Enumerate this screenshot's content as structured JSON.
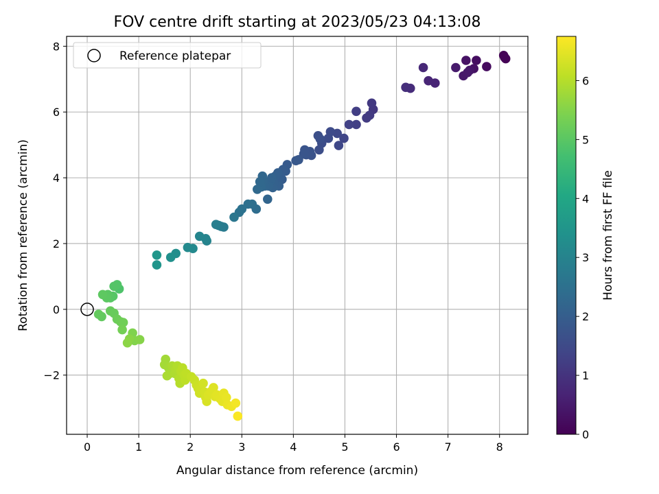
{
  "chart_data": {
    "type": "scatter",
    "title": "FOV centre drift starting at 2023/05/23 04:13:08",
    "xlabel": "Angular distance from reference (arcmin)",
    "ylabel": "Rotation from reference (arcmin)",
    "xlim": [
      -0.4,
      8.55
    ],
    "ylim": [
      -3.8,
      8.3
    ],
    "xticks": [
      0,
      1,
      2,
      3,
      4,
      5,
      6,
      7,
      8
    ],
    "yticks": [
      -2,
      0,
      2,
      4,
      6,
      8
    ],
    "ytick_labels": [
      "−2",
      "0",
      "2",
      "4",
      "6",
      "8"
    ],
    "grid": true,
    "legend": {
      "placement": "top-left",
      "entries": [
        "Reference platepar"
      ]
    },
    "reference_point": {
      "x": 0,
      "y": 0
    },
    "colorbar": {
      "label": "Hours from first FF file",
      "colormap": "viridis",
      "range": [
        0,
        6.75
      ],
      "ticks": [
        0,
        1,
        2,
        3,
        4,
        5,
        6
      ]
    },
    "points": [
      [
        8.08,
        7.72,
        0.0
      ],
      [
        8.12,
        7.62,
        0.02
      ],
      [
        8.1,
        7.66,
        0.04
      ],
      [
        7.75,
        7.38,
        0.2
      ],
      [
        7.55,
        7.57,
        0.25
      ],
      [
        7.5,
        7.32,
        0.3
      ],
      [
        7.35,
        7.57,
        0.33
      ],
      [
        7.42,
        7.27,
        0.38
      ],
      [
        7.3,
        7.1,
        0.42
      ],
      [
        7.38,
        7.2,
        0.45
      ],
      [
        7.15,
        7.35,
        0.5
      ],
      [
        6.75,
        6.88,
        0.7
      ],
      [
        6.62,
        6.95,
        0.72
      ],
      [
        6.52,
        7.35,
        0.75
      ],
      [
        6.27,
        6.72,
        0.85
      ],
      [
        6.18,
        6.75,
        0.9
      ],
      [
        5.55,
        6.08,
        1.1
      ],
      [
        5.52,
        6.27,
        1.12
      ],
      [
        5.48,
        5.9,
        1.15
      ],
      [
        5.42,
        5.82,
        1.18
      ],
      [
        5.22,
        6.02,
        1.22
      ],
      [
        5.22,
        5.62,
        1.26
      ],
      [
        5.08,
        5.62,
        1.3
      ],
      [
        4.98,
        5.2,
        1.4
      ],
      [
        4.88,
        4.98,
        1.45
      ],
      [
        4.85,
        5.35,
        1.48
      ],
      [
        4.72,
        5.4,
        1.52
      ],
      [
        4.68,
        5.2,
        1.55
      ],
      [
        4.55,
        5.05,
        1.58
      ],
      [
        4.5,
        4.85,
        1.6
      ],
      [
        4.48,
        5.28,
        1.62
      ],
      [
        4.52,
        5.18,
        1.64
      ],
      [
        4.35,
        4.68,
        1.7
      ],
      [
        4.32,
        4.8,
        1.72
      ],
      [
        4.25,
        4.7,
        1.74
      ],
      [
        4.22,
        4.85,
        1.76
      ],
      [
        4.2,
        4.72,
        1.78
      ],
      [
        4.1,
        4.55,
        1.82
      ],
      [
        4.05,
        4.52,
        1.84
      ],
      [
        3.88,
        4.4,
        1.9
      ],
      [
        3.85,
        4.2,
        1.92
      ],
      [
        3.8,
        4.25,
        1.94
      ],
      [
        3.78,
        3.95,
        1.96
      ],
      [
        3.75,
        4.05,
        1.98
      ],
      [
        3.72,
        3.95,
        2.0
      ],
      [
        3.7,
        4.15,
        2.02
      ],
      [
        3.72,
        3.75,
        2.04
      ],
      [
        3.65,
        4.05,
        2.06
      ],
      [
        3.62,
        3.85,
        2.08
      ],
      [
        3.6,
        3.7,
        2.1
      ],
      [
        3.58,
        4.0,
        2.12
      ],
      [
        3.55,
        3.9,
        2.14
      ],
      [
        3.52,
        3.75,
        2.16
      ],
      [
        3.5,
        3.35,
        2.18
      ],
      [
        3.45,
        3.75,
        2.2
      ],
      [
        3.42,
        3.92,
        2.22
      ],
      [
        3.4,
        4.05,
        2.24
      ],
      [
        3.38,
        3.72,
        2.26
      ],
      [
        3.35,
        3.88,
        2.28
      ],
      [
        3.3,
        3.65,
        2.3
      ],
      [
        3.28,
        3.05,
        2.4
      ],
      [
        3.2,
        3.2,
        2.45
      ],
      [
        3.12,
        3.2,
        2.48
      ],
      [
        3.0,
        3.05,
        2.52
      ],
      [
        2.95,
        2.95,
        2.55
      ],
      [
        2.85,
        2.8,
        2.65
      ],
      [
        2.65,
        2.5,
        2.75
      ],
      [
        2.6,
        2.52,
        2.78
      ],
      [
        2.55,
        2.55,
        2.82
      ],
      [
        2.5,
        2.58,
        2.85
      ],
      [
        2.32,
        2.08,
        3.0
      ],
      [
        2.3,
        2.15,
        3.02
      ],
      [
        2.18,
        2.22,
        3.05
      ],
      [
        2.05,
        1.85,
        3.15
      ],
      [
        1.95,
        1.88,
        3.18
      ],
      [
        1.72,
        1.7,
        3.3
      ],
      [
        1.62,
        1.58,
        3.35
      ],
      [
        1.35,
        1.35,
        3.5
      ],
      [
        1.35,
        1.65,
        3.52
      ],
      [
        0.62,
        0.62,
        4.85
      ],
      [
        0.58,
        0.75,
        4.9
      ],
      [
        0.52,
        0.7,
        4.92
      ],
      [
        0.5,
        0.4,
        4.95
      ],
      [
        0.45,
        0.35,
        4.97
      ],
      [
        0.4,
        0.45,
        5.0
      ],
      [
        0.38,
        0.35,
        5.02
      ],
      [
        0.3,
        0.45,
        5.05
      ],
      [
        0.28,
        -0.22,
        5.1
      ],
      [
        0.22,
        -0.15,
        5.12
      ],
      [
        0.45,
        -0.05,
        5.15
      ],
      [
        0.52,
        -0.12,
        5.18
      ],
      [
        0.58,
        -0.3,
        5.22
      ],
      [
        0.65,
        -0.38,
        5.25
      ],
      [
        0.7,
        -0.4,
        5.28
      ],
      [
        0.68,
        -0.62,
        5.32
      ],
      [
        0.88,
        -0.72,
        5.45
      ],
      [
        0.92,
        -0.95,
        5.48
      ],
      [
        1.02,
        -0.92,
        5.52
      ],
      [
        0.82,
        -0.9,
        5.55
      ],
      [
        0.78,
        -1.02,
        5.58
      ],
      [
        1.52,
        -1.52,
        5.8
      ],
      [
        1.5,
        -1.68,
        5.82
      ],
      [
        1.58,
        -1.78,
        5.84
      ],
      [
        1.6,
        -1.95,
        5.86
      ],
      [
        1.55,
        -2.02,
        5.88
      ],
      [
        1.65,
        -1.72,
        5.9
      ],
      [
        1.7,
        -1.95,
        5.92
      ],
      [
        1.72,
        -1.82,
        5.94
      ],
      [
        1.75,
        -1.72,
        5.96
      ],
      [
        1.78,
        -2.1,
        5.98
      ],
      [
        1.8,
        -2.25,
        6.0
      ],
      [
        1.82,
        -1.88,
        6.02
      ],
      [
        1.85,
        -1.78,
        6.04
      ],
      [
        1.88,
        -2.0,
        6.06
      ],
      [
        1.9,
        -2.15,
        6.08
      ],
      [
        1.92,
        -1.95,
        6.1
      ],
      [
        2.02,
        -2.05,
        6.14
      ],
      [
        2.08,
        -2.15,
        6.18
      ],
      [
        2.12,
        -2.3,
        6.22
      ],
      [
        2.15,
        -2.4,
        6.24
      ],
      [
        2.18,
        -2.55,
        6.26
      ],
      [
        2.2,
        -2.45,
        6.28
      ],
      [
        2.25,
        -2.25,
        6.3
      ],
      [
        2.28,
        -2.52,
        6.32
      ],
      [
        2.3,
        -2.68,
        6.34
      ],
      [
        2.32,
        -2.8,
        6.36
      ],
      [
        2.35,
        -2.6,
        6.38
      ],
      [
        2.4,
        -2.5,
        6.4
      ],
      [
        2.45,
        -2.38,
        6.42
      ],
      [
        2.48,
        -2.65,
        6.44
      ],
      [
        2.52,
        -2.6,
        6.46
      ],
      [
        2.58,
        -2.72,
        6.48
      ],
      [
        2.62,
        -2.8,
        6.5
      ],
      [
        2.65,
        -2.55,
        6.52
      ],
      [
        2.7,
        -2.68,
        6.54
      ],
      [
        2.72,
        -2.9,
        6.56
      ],
      [
        2.8,
        -2.95,
        6.6
      ],
      [
        2.88,
        -2.85,
        6.64
      ],
      [
        2.92,
        -3.25,
        6.72
      ]
    ]
  }
}
